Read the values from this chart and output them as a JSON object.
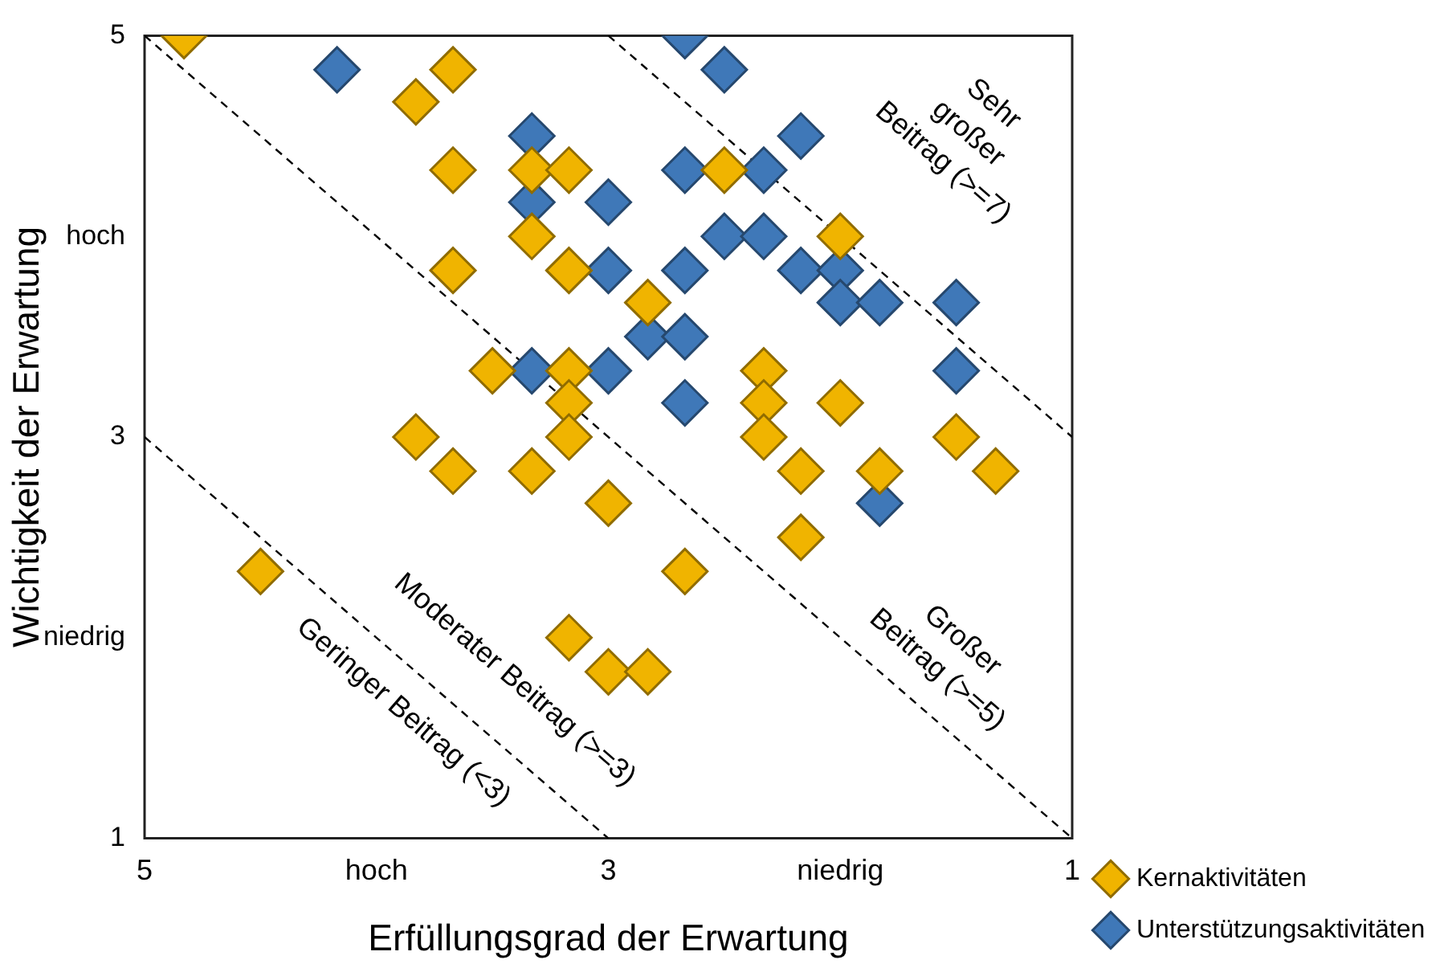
{
  "chart_data": {
    "type": "scatter",
    "xlabel": "Erfüllungsgrad der Erwartung",
    "ylabel": "Wichtigkeit der Erwartung",
    "xlim": [
      5,
      1
    ],
    "ylim": [
      1,
      5
    ],
    "xticks": [
      5,
      {
        "value": 4,
        "label": "hoch"
      },
      3,
      {
        "value": 2,
        "label": "niedrig"
      },
      1
    ],
    "yticks": [
      1,
      {
        "value": 2,
        "label": "niedrig"
      },
      3,
      {
        "value": 4,
        "label": "hoch"
      },
      5
    ],
    "grid": false,
    "legend": "bottom right",
    "marker": "diamond",
    "series": [
      {
        "type": "line",
        "color": "#000000",
        "line_style": "dashed",
        "marker": "none",
        "x": [
          5,
          3
        ],
        "values": [
          3,
          1
        ]
      },
      {
        "type": "line",
        "color": "#000000",
        "line_style": "dashed",
        "marker": "none",
        "x": [
          5,
          1
        ],
        "values": [
          5,
          1
        ]
      },
      {
        "type": "line",
        "color": "#000000",
        "line_style": "dashed",
        "marker": "none",
        "x": [
          3,
          1
        ],
        "values": [
          5,
          3
        ]
      },
      {
        "name": "Kernaktivitäten",
        "color": "#f0b400",
        "x": [
          4.83,
          3.67,
          3.83,
          3.67,
          3.33,
          3.17,
          3.33,
          3.67,
          3.17,
          2.83,
          3.5,
          3.17,
          3.17,
          3.83,
          3.17,
          3.67,
          3.33,
          3.0,
          4.5,
          2.67,
          3.17,
          3.0,
          2.83,
          2.5,
          2.0,
          2.33,
          2.33,
          2.0,
          2.33,
          1.5,
          2.17,
          1.83,
          1.33,
          2.17
        ],
        "values": [
          5,
          4.83,
          4.67,
          4.33,
          4.33,
          4.33,
          4.0,
          3.83,
          3.83,
          3.67,
          3.33,
          3.33,
          3.17,
          3.0,
          3.0,
          2.83,
          2.83,
          2.67,
          2.33,
          2.33,
          2.0,
          1.83,
          1.83,
          4.33,
          4.0,
          3.33,
          3.17,
          3.17,
          3.0,
          3.0,
          2.83,
          2.83,
          2.83,
          2.5
        ]
      },
      {
        "name": "Unterstützungsaktivitäten",
        "color": "#3f78b8",
        "x": [
          4.17,
          2.67,
          2.5,
          2.17,
          3.33,
          3.33,
          3.0,
          2.67,
          2.33,
          2.5,
          2.33,
          2.67,
          3.0,
          2.17,
          2.0,
          2.0,
          1.83,
          1.5,
          2.83,
          2.67,
          3.33,
          3.0,
          1.5,
          2.67,
          1.83
        ],
        "values": [
          4.83,
          5,
          4.83,
          4.5,
          4.5,
          4.17,
          4.17,
          4.33,
          4.33,
          4.0,
          4.0,
          3.83,
          3.83,
          3.83,
          3.83,
          3.67,
          3.67,
          3.67,
          3.5,
          3.5,
          3.33,
          3.33,
          3.33,
          3.17,
          2.67
        ]
      }
    ],
    "annotations": [
      "Sehr\ngroßer\nBeitrag (>=7)",
      "Großer\nBeitrag (>=5)",
      "Moderater Beitrag (>=3)",
      "Geringer Beitrag (<3)"
    ]
  }
}
